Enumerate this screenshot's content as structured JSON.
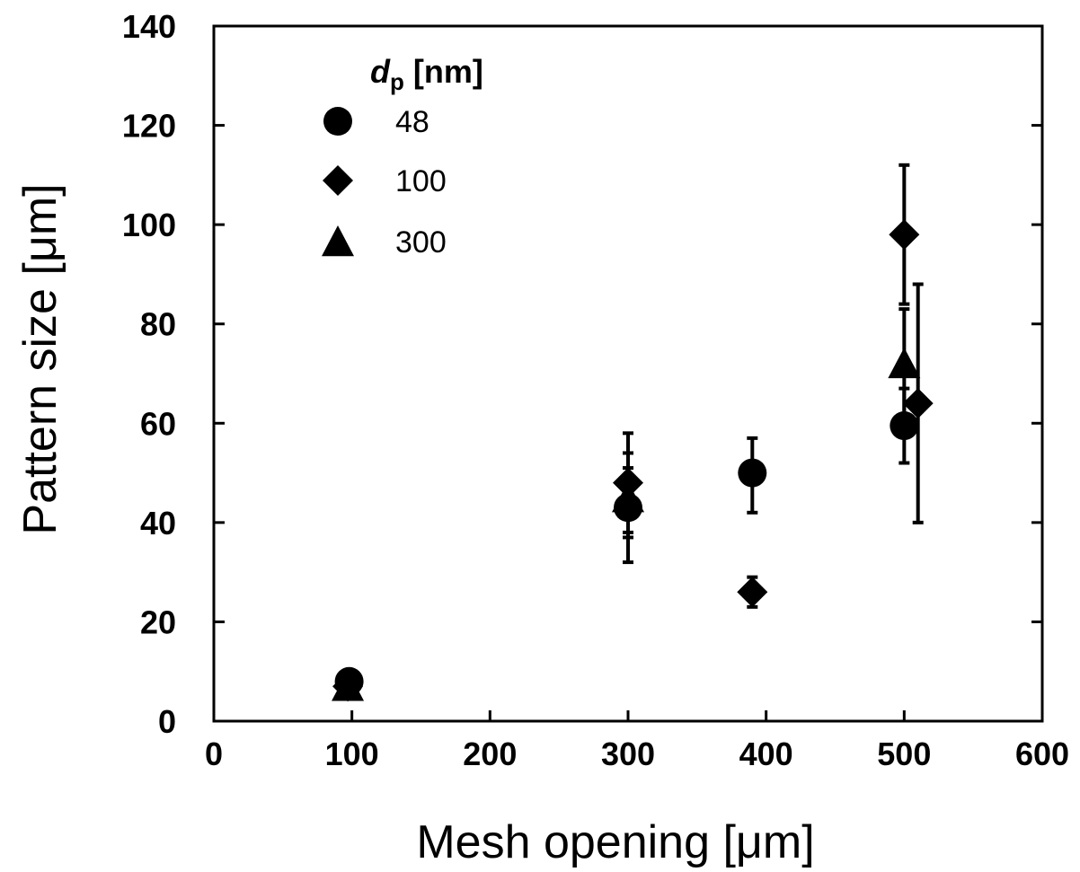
{
  "chart_data": {
    "type": "scatter",
    "xlabel": "Mesh opening [μm]",
    "ylabel": "Pattern size [μm]",
    "xlim": [
      0,
      600
    ],
    "ylim": [
      0,
      140
    ],
    "xticks": [
      "0",
      "100",
      "200",
      "300",
      "400",
      "500",
      "600"
    ],
    "yticks": [
      "0",
      "20",
      "40",
      "60",
      "80",
      "100",
      "120",
      "140"
    ],
    "legend": {
      "title_main": "d",
      "title_sub": "p",
      "title_unit": " [nm]",
      "placement": "top-left"
    },
    "series": [
      {
        "name": "48",
        "marker": "circle",
        "points": [
          {
            "x": 98,
            "y": 8,
            "err": null
          },
          {
            "x": 300,
            "y": 43,
            "err": [
              32,
              54
            ]
          },
          {
            "x": 390,
            "y": 50,
            "err": [
              42,
              57
            ]
          },
          {
            "x": 500,
            "y": 59.5,
            "err": [
              52,
              67
            ]
          }
        ]
      },
      {
        "name": "100",
        "marker": "diamond",
        "points": [
          {
            "x": 97,
            "y": 7,
            "err": null
          },
          {
            "x": 300,
            "y": 48,
            "err": [
              38,
              58
            ]
          },
          {
            "x": 390,
            "y": 26,
            "err": [
              23,
              29
            ]
          },
          {
            "x": 500,
            "y": 98,
            "err": [
              84,
              112
            ]
          },
          {
            "x": 510,
            "y": 64,
            "err": [
              40,
              88
            ]
          }
        ]
      },
      {
        "name": "300",
        "marker": "triangle",
        "points": [
          {
            "x": 97,
            "y": 7,
            "err": null
          },
          {
            "x": 300,
            "y": 45,
            "err": [
              37,
              51
            ]
          },
          {
            "x": 500,
            "y": 72,
            "err": [
              61,
              83
            ]
          }
        ]
      }
    ]
  }
}
